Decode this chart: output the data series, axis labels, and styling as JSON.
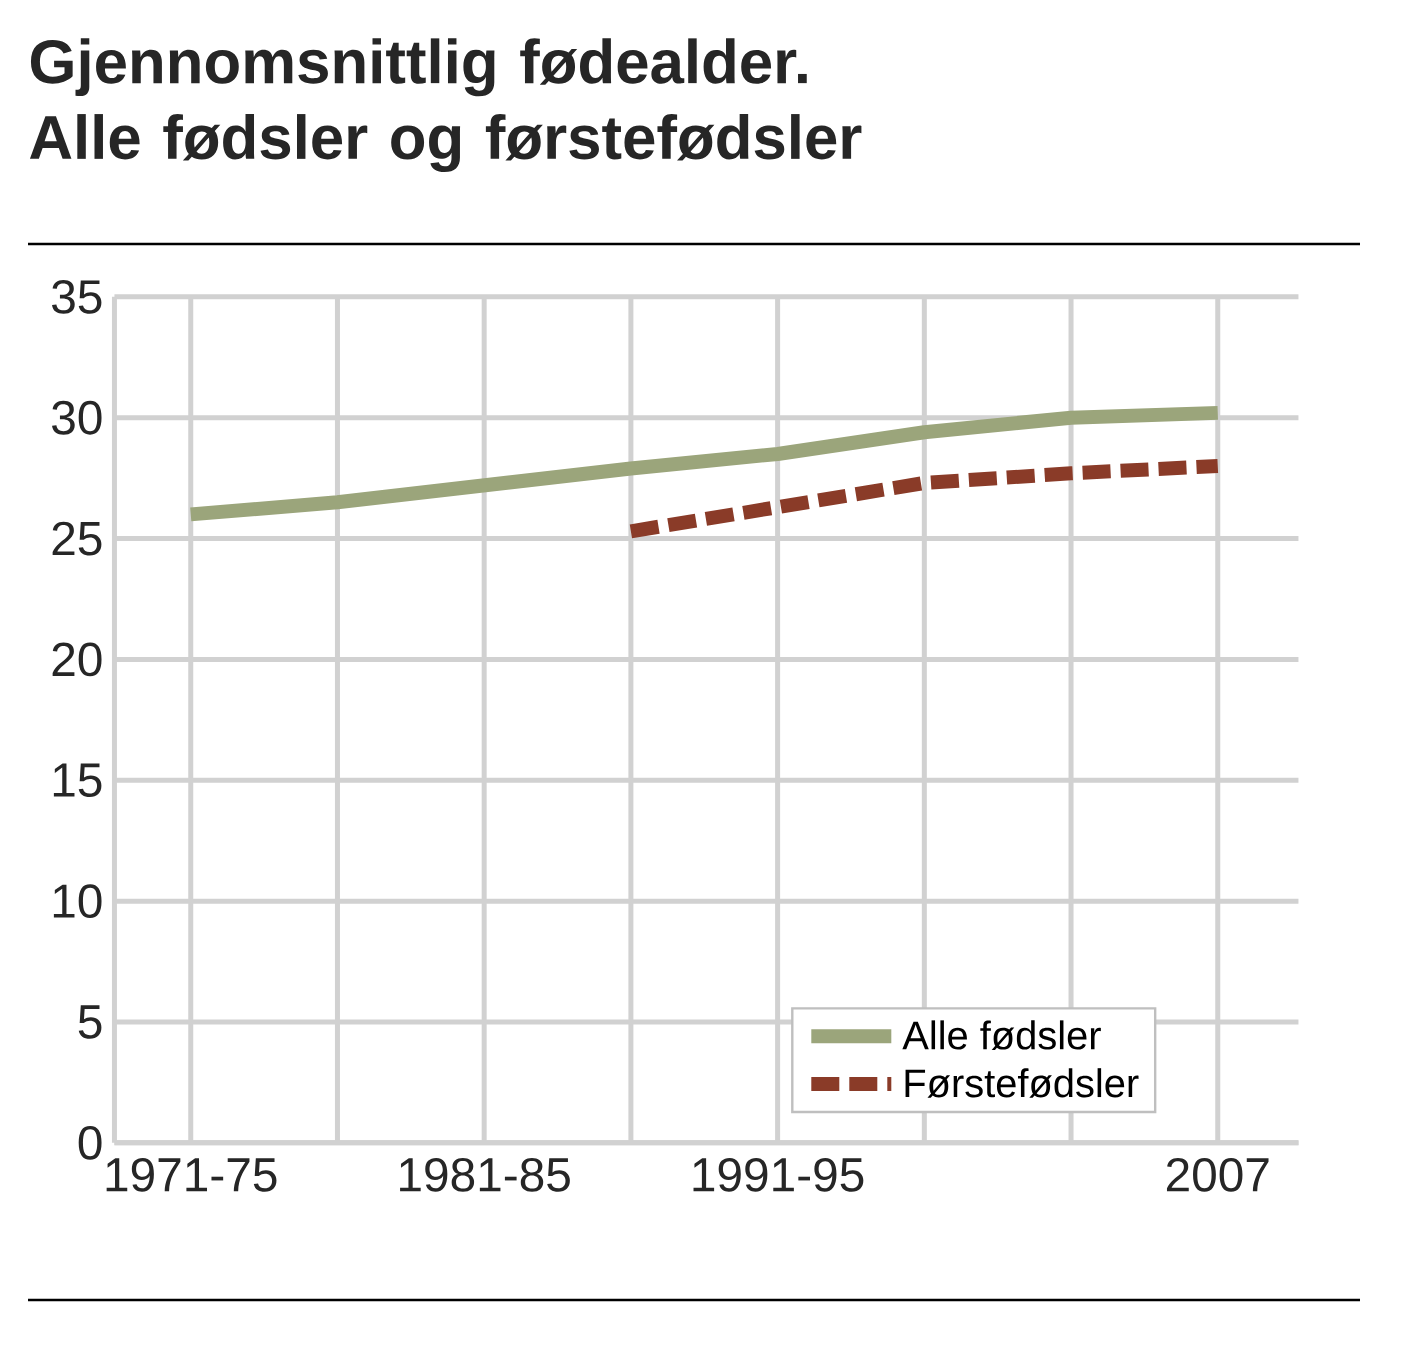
{
  "chart_data": {
    "type": "line",
    "title": "Gjennomsnittlig fødealder.\nAlle fødsler og førstefødsler",
    "categories": [
      "1971-75",
      null,
      "1981-85",
      null,
      "1991-95",
      null,
      null,
      "2007"
    ],
    "series": [
      {
        "name": "Alle fødsler",
        "color": "#9ba57b",
        "line_style": "solid",
        "values": [
          26.0,
          26.5,
          27.2,
          27.9,
          28.5,
          29.4,
          30.0,
          30.2
        ]
      },
      {
        "name": "Førstefødsler",
        "color": "#8a3b28",
        "line_style": "dashed",
        "values": [
          null,
          null,
          null,
          25.3,
          26.3,
          27.3,
          27.7,
          28.0
        ]
      }
    ],
    "ylim": [
      0,
      35
    ],
    "yticks": [
      0,
      5,
      10,
      15,
      20,
      25,
      30,
      35
    ],
    "grid": true,
    "legend": "bottom right",
    "marker": "none"
  }
}
